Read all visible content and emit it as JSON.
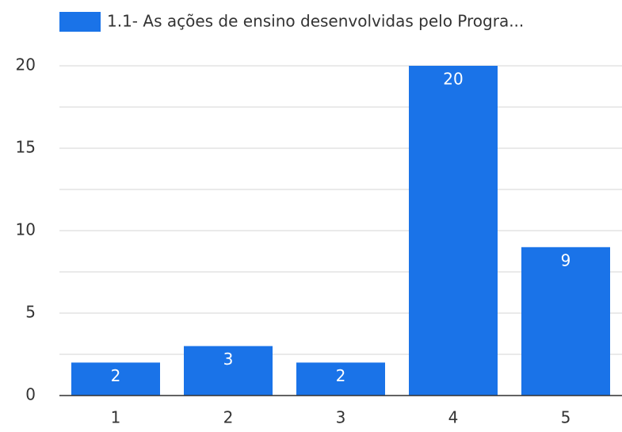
{
  "chart_data": {
    "type": "bar",
    "categories": [
      "1",
      "2",
      "3",
      "4",
      "5"
    ],
    "series": [
      {
        "name": "1.1- As ações de ensino desenvolvidas pelo Progra...",
        "color": "#1a73e8",
        "values": [
          2,
          3,
          2,
          20,
          9
        ]
      }
    ],
    "ylim": [
      0,
      20
    ],
    "yticks": [
      0,
      5,
      10,
      15,
      20
    ],
    "minor_yticks": [
      2.5,
      7.5,
      12.5,
      17.5
    ],
    "grid": true,
    "legend": "top",
    "data_labels": true
  }
}
